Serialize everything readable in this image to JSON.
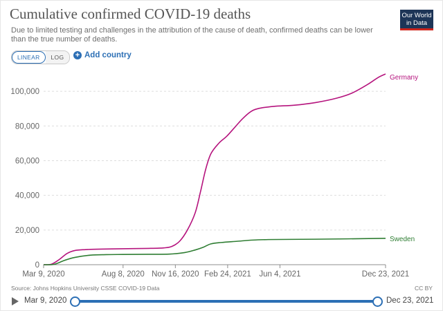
{
  "header": {
    "title": "Cumulative confirmed COVID-19 deaths",
    "subtitle": "Due to limited testing and challenges in the attribution of the cause of death, confirmed deaths can be lower than the true number of deaths.",
    "logo_line1": "Our World",
    "logo_line2": "in Data"
  },
  "controls": {
    "linear_label": "LINEAR",
    "log_label": "LOG",
    "add_country_label": "Add country"
  },
  "footer": {
    "source": "Source: Johns Hopkins University CSSE COVID-19 Data",
    "license": "CC BY"
  },
  "timeline": {
    "start_label": "Mar 9, 2020",
    "end_label": "Dec 23, 2021"
  },
  "colors": {
    "germany": "#b5137d",
    "sweden": "#2e7d32",
    "accent": "#2c6fb5"
  },
  "chart_data": {
    "type": "line",
    "title": "Cumulative confirmed COVID-19 deaths",
    "xlabel": "",
    "ylabel": "",
    "x_range_days": [
      0,
      654
    ],
    "ylim": [
      0,
      110000
    ],
    "y_ticks": [
      0,
      20000,
      40000,
      60000,
      80000,
      100000
    ],
    "y_tick_labels": [
      "0",
      "20,000",
      "40,000",
      "60,000",
      "80,000",
      "100,000"
    ],
    "x_ticks": [
      {
        "day": 0,
        "label": "Mar 9, 2020"
      },
      {
        "day": 152,
        "label": "Aug 8, 2020"
      },
      {
        "day": 252,
        "label": "Nov 16, 2020"
      },
      {
        "day": 352,
        "label": "Feb 24, 2021"
      },
      {
        "day": 452,
        "label": "Jun 4, 2021"
      },
      {
        "day": 654,
        "label": "Dec 23, 2021"
      }
    ],
    "series": [
      {
        "name": "Germany",
        "color": "#b5137d",
        "points": [
          [
            0,
            0
          ],
          [
            15,
            300
          ],
          [
            30,
            3000
          ],
          [
            45,
            6500
          ],
          [
            60,
            8200
          ],
          [
            80,
            8700
          ],
          [
            110,
            9000
          ],
          [
            150,
            9200
          ],
          [
            200,
            9400
          ],
          [
            230,
            9700
          ],
          [
            245,
            10500
          ],
          [
            260,
            13500
          ],
          [
            275,
            20000
          ],
          [
            290,
            30000
          ],
          [
            300,
            42000
          ],
          [
            310,
            55000
          ],
          [
            320,
            64000
          ],
          [
            335,
            70000
          ],
          [
            350,
            74000
          ],
          [
            365,
            79000
          ],
          [
            380,
            84000
          ],
          [
            395,
            88000
          ],
          [
            410,
            90000
          ],
          [
            440,
            91300
          ],
          [
            480,
            92000
          ],
          [
            520,
            93500
          ],
          [
            560,
            96000
          ],
          [
            590,
            99000
          ],
          [
            620,
            104000
          ],
          [
            640,
            108000
          ],
          [
            654,
            110000
          ]
        ]
      },
      {
        "name": "Sweden",
        "color": "#2e7d32",
        "points": [
          [
            0,
            0
          ],
          [
            20,
            200
          ],
          [
            40,
            2500
          ],
          [
            60,
            4200
          ],
          [
            90,
            5500
          ],
          [
            120,
            5800
          ],
          [
            150,
            5900
          ],
          [
            200,
            6000
          ],
          [
            240,
            6100
          ],
          [
            270,
            7000
          ],
          [
            290,
            8500
          ],
          [
            305,
            10000
          ],
          [
            320,
            12000
          ],
          [
            340,
            12800
          ],
          [
            370,
            13500
          ],
          [
            400,
            14200
          ],
          [
            430,
            14500
          ],
          [
            470,
            14600
          ],
          [
            520,
            14700
          ],
          [
            580,
            14900
          ],
          [
            654,
            15200
          ]
        ]
      }
    ]
  }
}
